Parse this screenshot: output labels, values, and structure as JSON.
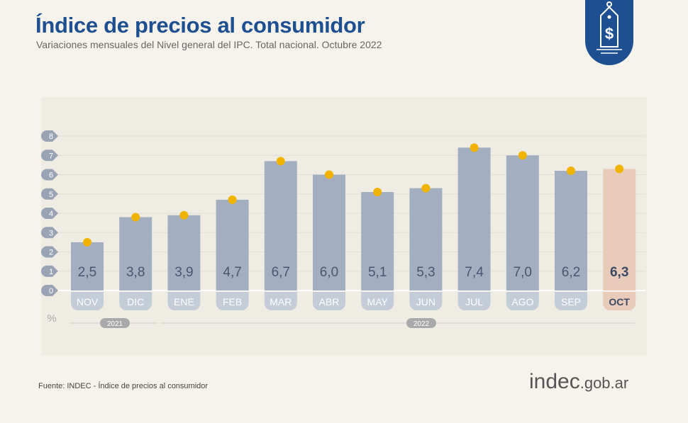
{
  "header": {
    "title": "Índice de precios al consumidor",
    "subtitle": "Variaciones mensuales del Nivel general del IPC. Total nacional. Octubre 2022"
  },
  "logo_icon": "price-tag-dollar-icon",
  "footer": {
    "source": "Fuente: INDEC - Índice de precios al consumidor",
    "brand_main": "indec",
    "brand_domain": ".gob.ar"
  },
  "colors": {
    "title": "#1d4f91",
    "bar": "#a3afc1",
    "highlight_bar": "#e8cbb9",
    "dot": "#f0b400"
  },
  "chart_data": {
    "type": "bar",
    "categories": [
      "NOV",
      "DIC",
      "ENE",
      "FEB",
      "MAR",
      "ABR",
      "MAY",
      "JUN",
      "JUL",
      "AGO",
      "SEP",
      "OCT"
    ],
    "values": [
      2.5,
      3.8,
      3.9,
      4.7,
      6.7,
      6.0,
      5.1,
      5.3,
      7.4,
      7.0,
      6.2,
      6.3
    ],
    "data_labels": [
      "2,5",
      "3,8",
      "3,9",
      "4,7",
      "6,7",
      "6,0",
      "5,1",
      "5,3",
      "7,4",
      "7,0",
      "6,2",
      "6,3"
    ],
    "highlight": "OCT",
    "ylim": [
      0,
      8
    ],
    "yticks": [
      0,
      1,
      2,
      3,
      4,
      5,
      6,
      7,
      8
    ],
    "ylabel": "%",
    "year_groups": [
      {
        "label": "2021",
        "categories": [
          "NOV",
          "DIC"
        ]
      },
      {
        "label": "2022",
        "categories": [
          "ENE",
          "FEB",
          "MAR",
          "ABR",
          "MAY",
          "JUN",
          "JUL",
          "AGO",
          "SEP",
          "OCT"
        ]
      }
    ],
    "grid": true
  }
}
